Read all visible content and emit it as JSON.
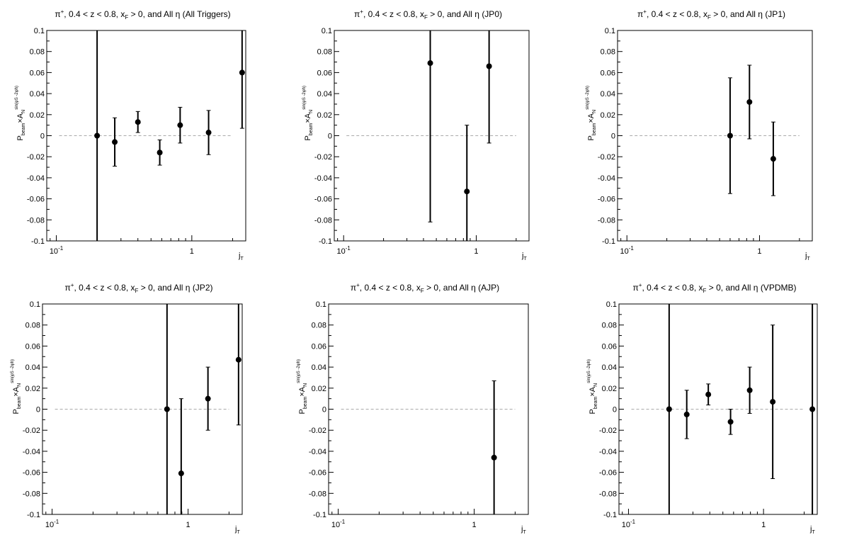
{
  "common": {
    "ylabel": {
      "p": "P",
      "beam": "beam",
      "times": "×",
      "a": "A",
      "n": "N",
      "sup": "sin(φ",
      "sup_s": "S",
      "sup_mid": " -2φ",
      "sup_h": "h",
      "sup_end": ")"
    },
    "xlabel": {
      "j": "j",
      "t": "T"
    },
    "xtick_labels": {
      "tenth": "10",
      "tenth_exp": "-1",
      "one": "1"
    },
    "ytick_labels": [
      "-0.1",
      "-0.08",
      "-0.06",
      "-0.04",
      "-0.02",
      "0",
      "0.02",
      "0.04",
      "0.06",
      "0.08",
      "0.1"
    ]
  },
  "chart_data": [
    {
      "type": "scatter",
      "title": {
        "pi": "π",
        "sup": "+",
        "pre": ", 0.4 < z < 0.8, x",
        "sub": "F",
        "post": " > 0, and All η ",
        "tag": "(All Triggers)"
      },
      "xscale": "log",
      "xlim": [
        0.085,
        2.5
      ],
      "ylim": [
        -0.1,
        0.1
      ],
      "reference_line": 0,
      "points": [
        {
          "x": 0.2,
          "y": 0.0,
          "err": 0.13
        },
        {
          "x": 0.27,
          "y": -0.006,
          "err": 0.023
        },
        {
          "x": 0.4,
          "y": 0.013,
          "err": 0.01
        },
        {
          "x": 0.58,
          "y": -0.016,
          "err": 0.012
        },
        {
          "x": 0.82,
          "y": 0.01,
          "err": 0.017
        },
        {
          "x": 1.33,
          "y": 0.003,
          "err": 0.021
        },
        {
          "x": 2.35,
          "y": 0.06,
          "err": 0.053
        }
      ]
    },
    {
      "type": "scatter",
      "title": {
        "pi": "π",
        "sup": "+",
        "pre": ", 0.4 < z < 0.8, x",
        "sub": "F",
        "post": " > 0, and All η ",
        "tag": "(JP0)"
      },
      "xscale": "log",
      "xlim": [
        0.085,
        2.5
      ],
      "ylim": [
        -0.1,
        0.1
      ],
      "reference_line": 0,
      "points": [
        {
          "x": 0.45,
          "y": 0.069,
          "err": 0.151
        },
        {
          "x": 0.85,
          "y": -0.053,
          "err": 0.063
        },
        {
          "x": 1.25,
          "y": 0.066,
          "err": 0.073
        }
      ]
    },
    {
      "type": "scatter",
      "title": {
        "pi": "π",
        "sup": "+",
        "pre": ", 0.4 < z < 0.8, x",
        "sub": "F",
        "post": " > 0, and All η ",
        "tag": "(JP1)"
      },
      "xscale": "log",
      "xlim": [
        0.085,
        2.5
      ],
      "ylim": [
        -0.1,
        0.1
      ],
      "reference_line": 0,
      "points": [
        {
          "x": 0.6,
          "y": 0.0,
          "err": 0.055
        },
        {
          "x": 0.84,
          "y": 0.032,
          "err": 0.035
        },
        {
          "x": 1.27,
          "y": -0.022,
          "err": 0.035
        }
      ]
    },
    {
      "type": "scatter",
      "title": {
        "pi": "π",
        "sup": "+",
        "pre": ", 0.4 < z < 0.8, x",
        "sub": "F",
        "post": " > 0, and All η ",
        "tag": "(JP2)"
      },
      "xscale": "log",
      "xlim": [
        0.085,
        2.5
      ],
      "ylim": [
        -0.1,
        0.1
      ],
      "reference_line": 0,
      "points": [
        {
          "x": 0.7,
          "y": 0.0,
          "err": 0.13
        },
        {
          "x": 0.89,
          "y": -0.061,
          "err": 0.071
        },
        {
          "x": 1.4,
          "y": 0.01,
          "err": 0.03
        },
        {
          "x": 2.35,
          "y": 0.047,
          "err": 0.062
        }
      ]
    },
    {
      "type": "scatter",
      "title": {
        "pi": "π",
        "sup": "+",
        "pre": ", 0.4 < z < 0.8, x",
        "sub": "F",
        "post": " > 0, and All η ",
        "tag": "(AJP)"
      },
      "xscale": "log",
      "xlim": [
        0.085,
        2.5
      ],
      "ylim": [
        -0.1,
        0.1
      ],
      "reference_line": 0,
      "points": [
        {
          "x": 1.4,
          "y": -0.046,
          "err": 0.073
        }
      ]
    },
    {
      "type": "scatter",
      "title": {
        "pi": "π",
        "sup": "+",
        "pre": ", 0.4 < z < 0.8, x",
        "sub": "F",
        "post": " > 0, and All η ",
        "tag": "(VPDMB)"
      },
      "xscale": "log",
      "xlim": [
        0.085,
        2.5
      ],
      "ylim": [
        -0.1,
        0.1
      ],
      "reference_line": 0,
      "points": [
        {
          "x": 0.2,
          "y": 0.0,
          "err": 0.13
        },
        {
          "x": 0.27,
          "y": -0.005,
          "err": 0.023
        },
        {
          "x": 0.39,
          "y": 0.014,
          "err": 0.01
        },
        {
          "x": 0.57,
          "y": -0.012,
          "err": 0.012
        },
        {
          "x": 0.79,
          "y": 0.018,
          "err": 0.022
        },
        {
          "x": 1.17,
          "y": 0.007,
          "err": 0.073
        },
        {
          "x": 2.3,
          "y": 0.0,
          "err": 0.13
        }
      ]
    }
  ]
}
